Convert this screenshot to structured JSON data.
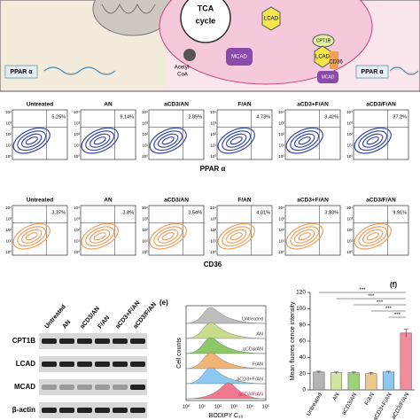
{
  "diagram": {
    "tca": "TCA",
    "cycle": "cycle",
    "lcad_top": "LCAD",
    "cpt1b": "CPT1B",
    "lcad": "LCAD",
    "cd36": "CD36",
    "mcad_left": "MCAD",
    "acetyl": "Acetyl-",
    "coa": "CoA",
    "mcad_right": "MCAD",
    "ppar_left": "PPAR α",
    "ppar_right": "PPAR α"
  },
  "flow_ppar": {
    "titles": [
      "Untreated",
      "AN",
      "aCD3/AN",
      "F/AN",
      "aCD3+F/AN",
      "aCD3/F/AN"
    ],
    "percents": [
      "5.25%",
      "9.14%",
      "2.85%",
      "4.73%",
      "3.42%",
      "37.2%"
    ],
    "yticks": [
      "10⁴",
      "10³",
      "10²",
      "10¹",
      "10⁰"
    ],
    "xlabel": "PPAR α"
  },
  "flow_cd36": {
    "titles": [
      "Untreated",
      "AN",
      "aCD3/AN",
      "F/AN",
      "aCD3+F/AN",
      "aCD3/F/AN"
    ],
    "percents": [
      "3.37%",
      "3.8%",
      "3.54%",
      "4.01%",
      "3.93%",
      "9.91%"
    ],
    "yticks": [
      "10⁴",
      "10³",
      "10²",
      "10¹",
      "10⁰"
    ],
    "xlabel": "CD36"
  },
  "western": {
    "columns": [
      "Untreated",
      "AN",
      "aCD3/AN",
      "F/AN",
      "aCD3+F/AN",
      "aCD3/F/AN"
    ],
    "rows": [
      "CPT1B",
      "LCAD",
      "MCAD",
      "β-actin"
    ]
  },
  "histogram": {
    "panel": "(e)",
    "labels": [
      "Untreated",
      "AN",
      "aCD3/AN",
      "F/AN",
      "aCD3+F/AN",
      "aCD3/F/AN"
    ],
    "colors": [
      "#bdbdbd",
      "#c8dc8c",
      "#8cc864",
      "#f0b478",
      "#8cc8f0",
      "#f07890"
    ],
    "ylabel": "Cell counts",
    "xlabel": "BODIPY C₁₆",
    "xticks": [
      "10⁰",
      "10¹",
      "10²",
      "10³",
      "10⁴",
      "10⁵"
    ]
  },
  "chart_data": {
    "type": "bar",
    "panel": "(f)",
    "ylabel": "Mean fluores cence intensity",
    "categories": [
      "Untreated",
      "AN",
      "aCD3/AN",
      "F/AN",
      "aCD3+F/AN",
      "aCD3/F/AN"
    ],
    "values": [
      22,
      21,
      21,
      20,
      22,
      70
    ],
    "errors": [
      1,
      1,
      1,
      1.5,
      1,
      5
    ],
    "colors": [
      "#b4b4b4",
      "#d2e6a0",
      "#9cd278",
      "#f0c88c",
      "#8cc8f0",
      "#f08c9c"
    ],
    "ylim": [
      0,
      120
    ],
    "yticks": [
      0,
      20,
      40,
      60,
      80,
      100,
      120
    ],
    "significance": [
      "***",
      "***",
      "***",
      "***",
      "***"
    ]
  }
}
